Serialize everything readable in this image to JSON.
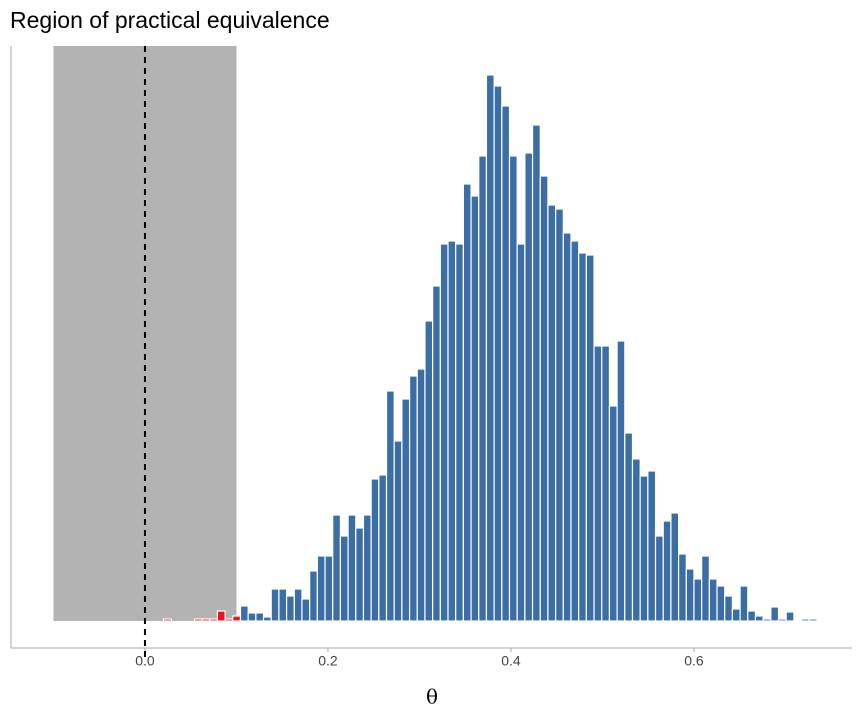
{
  "chart_data": {
    "type": "histogram",
    "title": "Region of practical equivalence",
    "x_label": "θ",
    "bins": [
      0.0204,
      0.0288,
      0.0372,
      0.0456,
      0.054,
      0.0624,
      0.0708,
      0.0792,
      0.0876,
      0.096,
      0.1044,
      0.1128,
      0.1212,
      0.1296,
      0.138,
      0.1464,
      0.1548,
      0.1632,
      0.1716,
      0.18,
      0.1884,
      0.1968,
      0.2052,
      0.2136,
      0.222,
      0.2304,
      0.2388,
      0.2472,
      0.2556,
      0.264,
      0.2724,
      0.2808,
      0.2892,
      0.2976,
      0.306,
      0.3144,
      0.3228,
      0.3312,
      0.3396,
      0.348,
      0.3564,
      0.3648,
      0.3732,
      0.3816,
      0.39,
      0.3984,
      0.4068,
      0.4152,
      0.4236,
      0.432,
      0.4404,
      0.4488,
      0.4572,
      0.4656,
      0.474,
      0.4824,
      0.4908,
      0.4992,
      0.5076,
      0.516,
      0.5244,
      0.5328,
      0.5412,
      0.5496,
      0.558,
      0.5664,
      0.5748,
      0.5832,
      0.5916,
      0.6,
      0.6084,
      0.6168,
      0.6252,
      0.6336,
      0.642,
      0.6504,
      0.6588,
      0.6672,
      0.6756,
      0.684,
      0.6924,
      0.7008,
      0.7092,
      0.7176,
      0.726,
      0.7344
    ],
    "values": [
      2,
      0,
      0,
      0,
      2,
      2,
      2,
      10,
      2,
      5,
      15,
      8,
      8,
      4,
      32,
      32,
      25,
      32,
      22,
      50,
      65,
      65,
      106,
      85,
      106,
      93,
      106,
      142,
      146,
      230,
      180,
      222,
      245,
      252,
      300,
      335,
      377,
      380,
      377,
      437,
      425,
      465,
      546,
      535,
      515,
      465,
      377,
      468,
      496,
      445,
      416,
      412,
      388,
      380,
      368,
      366,
      275,
      275,
      215,
      280,
      188,
      162,
      145,
      150,
      85,
      100,
      108,
      67,
      52,
      42,
      65,
      42,
      35,
      25,
      12,
      35,
      10,
      5,
      2,
      14,
      2,
      9,
      0,
      2,
      2
    ],
    "color": "#3a6ea5",
    "rope_color": "#e8141e",
    "rope_fill": "#b3b3b3",
    "rope": [
      -0.1,
      0.1
    ],
    "reference_line": 0,
    "xlim": [
      -0.1464,
      0.7727
    ],
    "ylim": [
      0,
      575
    ],
    "xticks": [
      {
        "value": 0,
        "label": "0.0"
      },
      0.2,
      0.4,
      0.6
    ]
  }
}
